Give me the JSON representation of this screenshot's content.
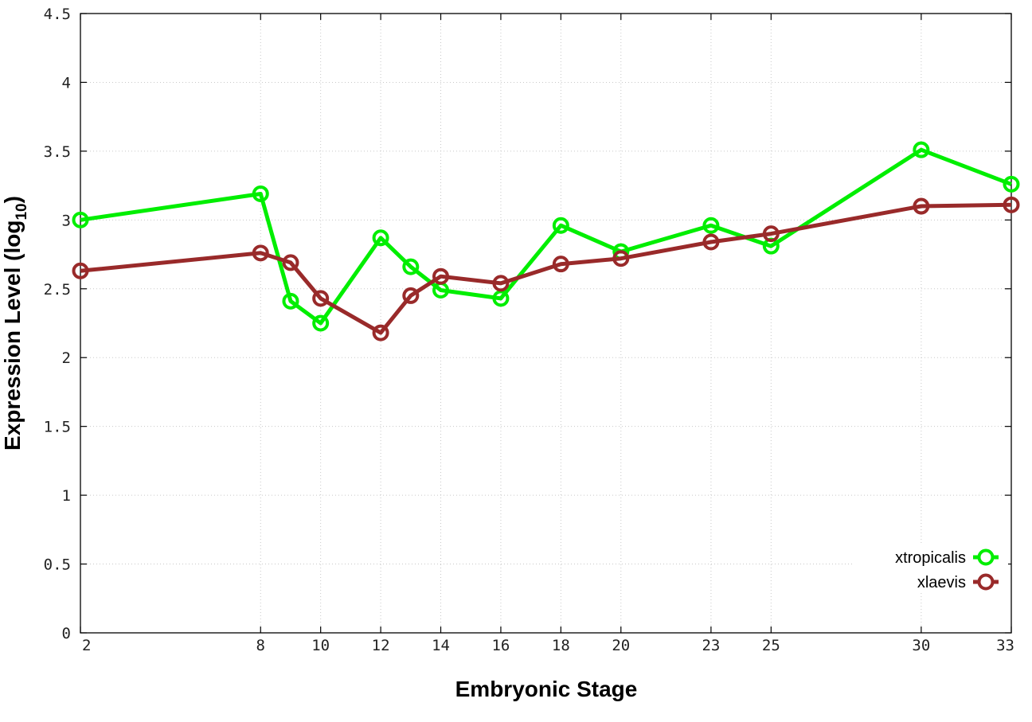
{
  "chart_data": {
    "type": "line",
    "title": "",
    "xlabel": "Embryonic Stage",
    "ylabel_main": "Expression Level (log",
    "ylabel_sub": "10",
    "ylabel_close": ")",
    "x_ticks": [
      2,
      8,
      10,
      12,
      14,
      16,
      18,
      20,
      23,
      25,
      30,
      33
    ],
    "x_tick_labels": [
      "2",
      "8",
      "10",
      "12",
      "14",
      "16",
      "18",
      "20",
      "23",
      "25",
      "30",
      "33"
    ],
    "y_ticks": [
      0,
      0.5,
      1,
      1.5,
      2,
      2.5,
      3,
      3.5,
      4,
      4.5
    ],
    "y_tick_labels": [
      "0",
      "0.5",
      "1",
      "1.5",
      "2",
      "2.5",
      "3",
      "3.5",
      "4",
      "4.5"
    ],
    "ylim": [
      0,
      4.5
    ],
    "grid": true,
    "legend_position": "bottom-right",
    "series": [
      {
        "name": "xtropicalis",
        "color": "#00ee00",
        "x": [
          2,
          8,
          9,
          10,
          12,
          13,
          14,
          16,
          18,
          20,
          23,
          25,
          30,
          33
        ],
        "values": [
          3.0,
          3.19,
          2.41,
          2.25,
          2.87,
          2.66,
          2.49,
          2.43,
          2.96,
          2.77,
          2.96,
          2.81,
          3.51,
          3.26
        ]
      },
      {
        "name": "xlaevis",
        "color": "#992a2a",
        "x": [
          2,
          8,
          9,
          10,
          12,
          13,
          14,
          16,
          18,
          20,
          23,
          25,
          30,
          33
        ],
        "values": [
          2.63,
          2.76,
          2.69,
          2.43,
          2.18,
          2.45,
          2.59,
          2.54,
          2.68,
          2.72,
          2.84,
          2.9,
          3.1,
          3.11
        ]
      }
    ]
  }
}
